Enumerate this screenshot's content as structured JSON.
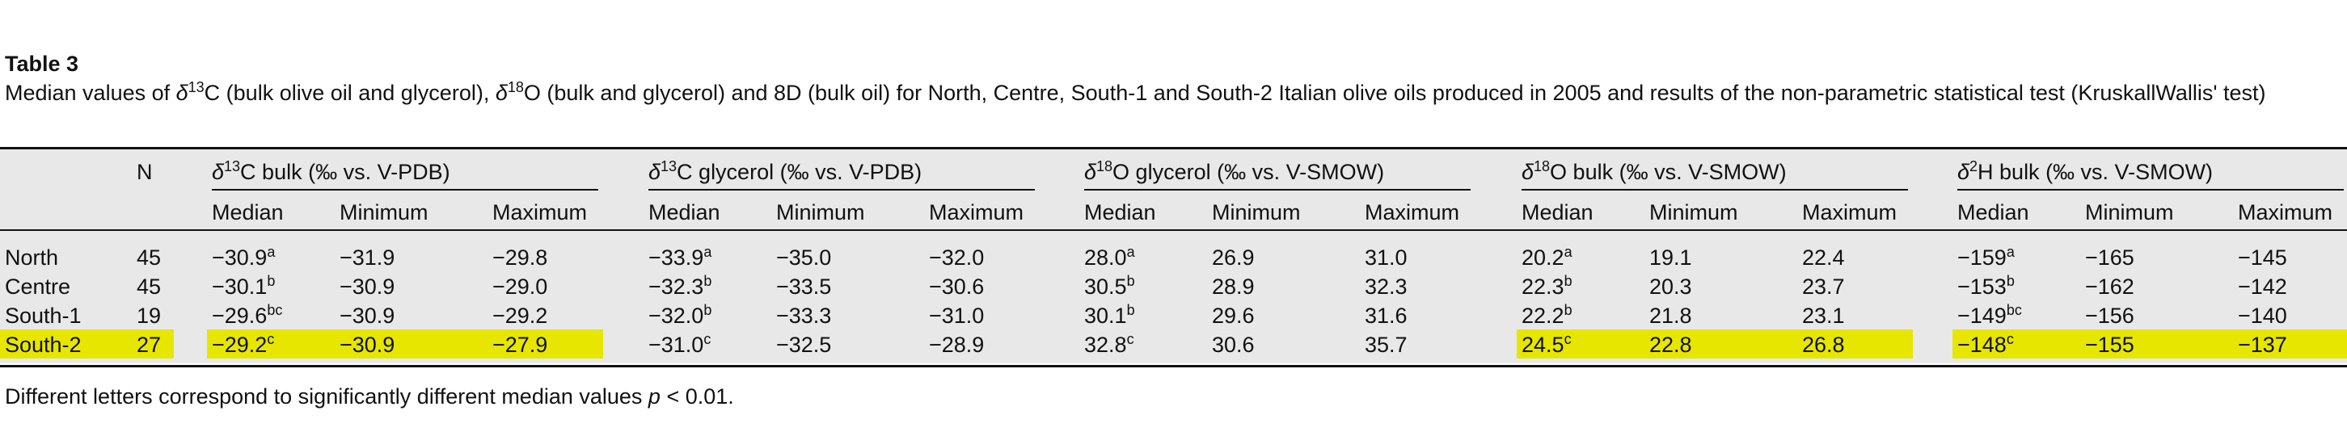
{
  "table_title": "Table 3",
  "caption": [
    {
      "text": "Median values of "
    },
    {
      "text": "δ",
      "italic": true
    },
    {
      "sup": "13"
    },
    {
      "text": "C (bulk olive oil and glycerol), "
    },
    {
      "text": "δ",
      "italic": true
    },
    {
      "sup": "18"
    },
    {
      "text": "O (bulk and glycerol) and 8D (bulk oil) for North, Centre, South-1 and South-2 Italian olive oils produced in 2005 and results of the non-parametric statistical test (KruskallWallis' test)"
    }
  ],
  "table": {
    "n_header": "N",
    "groups": [
      [
        {
          "text": "δ",
          "italic": true
        },
        {
          "sup": "13"
        },
        {
          "text": "C bulk (‰ vs. V-PDB)"
        }
      ],
      [
        {
          "text": "δ",
          "italic": true
        },
        {
          "sup": "13"
        },
        {
          "text": "C glycerol (‰ vs. V-PDB)"
        }
      ],
      [
        {
          "text": "δ",
          "italic": true
        },
        {
          "sup": "18"
        },
        {
          "text": "O glycerol (‰ vs. V-SMOW)"
        }
      ],
      [
        {
          "text": "δ",
          "italic": true
        },
        {
          "sup": "18"
        },
        {
          "text": "O bulk (‰ vs. V-SMOW)"
        }
      ],
      [
        {
          "text": "δ",
          "italic": true
        },
        {
          "sup": "2"
        },
        {
          "text": "H bulk (‰ vs. V-SMOW)"
        }
      ]
    ],
    "subheaders": [
      "Median",
      "Minimum",
      "Maximum"
    ],
    "rows": [
      {
        "label": "North",
        "n": "45",
        "cells": [
          [
            {
              "value": "−30.9",
              "sup": "a"
            },
            "−31.9",
            "−29.8"
          ],
          [
            {
              "value": "−33.9",
              "sup": "a"
            },
            "−35.0",
            "−32.0"
          ],
          [
            {
              "value": "28.0",
              "sup": "a"
            },
            "26.9",
            "31.0"
          ],
          [
            {
              "value": "20.2",
              "sup": "a"
            },
            "19.1",
            "22.4"
          ],
          [
            {
              "value": "−159",
              "sup": "a"
            },
            "−165",
            "−145"
          ]
        ]
      },
      {
        "label": "Centre",
        "n": "45",
        "cells": [
          [
            {
              "value": "−30.1",
              "sup": "b"
            },
            "−30.9",
            "−29.0"
          ],
          [
            {
              "value": "−32.3",
              "sup": "b"
            },
            "−33.5",
            "−30.6"
          ],
          [
            {
              "value": "30.5",
              "sup": "b"
            },
            "28.9",
            "32.3"
          ],
          [
            {
              "value": "22.3",
              "sup": "b"
            },
            "20.3",
            "23.7"
          ],
          [
            {
              "value": "−153",
              "sup": "b"
            },
            "−162",
            "−142"
          ]
        ]
      },
      {
        "label": "South-1",
        "n": "19",
        "cells": [
          [
            {
              "value": "−29.6",
              "sup": "bc"
            },
            "−30.9",
            "−29.2"
          ],
          [
            {
              "value": "−32.0",
              "sup": "b"
            },
            "−33.3",
            "−31.0"
          ],
          [
            {
              "value": "30.1",
              "sup": "b"
            },
            "29.6",
            "31.6"
          ],
          [
            {
              "value": "22.2",
              "sup": "b"
            },
            "21.8",
            "23.1"
          ],
          [
            {
              "value": "−149",
              "sup": "bc"
            },
            "−156",
            "−140"
          ]
        ]
      },
      {
        "label": "South-2",
        "n": "27",
        "highlight_label": true,
        "highlighted_groups": [
          0,
          3,
          4
        ],
        "cells": [
          [
            {
              "value": "−29.2",
              "sup": "c"
            },
            "−30.9",
            "−27.9"
          ],
          [
            {
              "value": "−31.0",
              "sup": "c"
            },
            "−32.5",
            "−28.9"
          ],
          [
            {
              "value": "32.8",
              "sup": "c"
            },
            "30.6",
            "35.7"
          ],
          [
            {
              "value": "24.5",
              "sup": "c"
            },
            "22.8",
            "26.8"
          ],
          [
            {
              "value": "−148",
              "sup": "c"
            },
            "−155",
            "−137"
          ]
        ]
      }
    ]
  },
  "footnote": [
    {
      "text": "Different letters correspond to significantly different median values "
    },
    {
      "text": "p",
      "italic": true
    },
    {
      "text": " < 0.01."
    }
  ]
}
